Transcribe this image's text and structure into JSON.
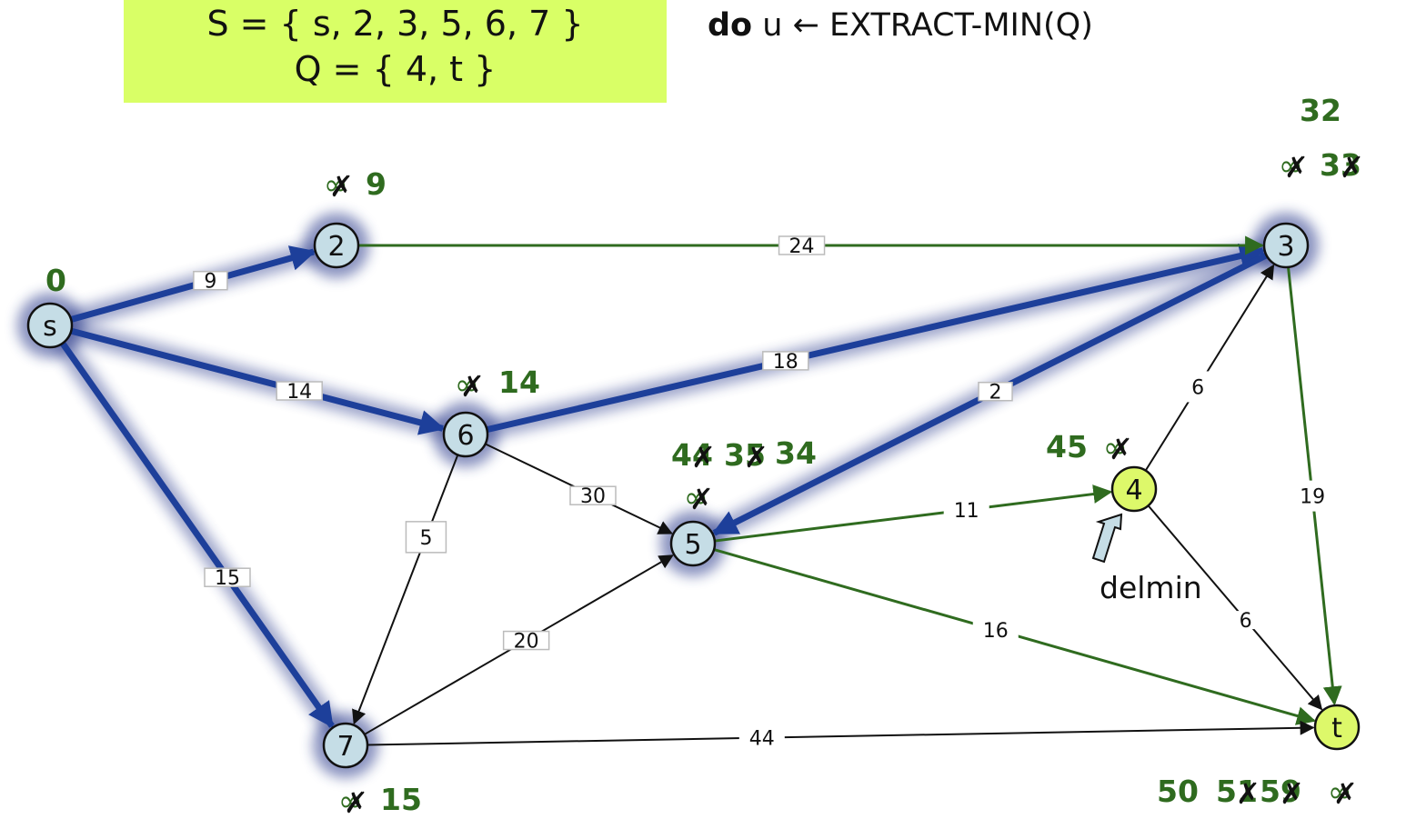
{
  "header": {
    "set_s": "S = { s, 2, 3, 5, 6, 7 }",
    "set_q": "Q = { 4, t }",
    "pseudo_keyword": "do",
    "pseudo_rest": " u ← EXTRACT-MIN(Q)"
  },
  "colors": {
    "set_box": "#d9ff66",
    "tree_edge": "#1d3f9a",
    "frontier_edge": "#2f6b1f",
    "plain_edge": "#111111",
    "settled_node": "#c5dde6",
    "queued_node": "#ddf86a",
    "dist_text": "#2f6b1f"
  },
  "nodes": [
    {
      "id": "s",
      "label": "s",
      "state": "settled"
    },
    {
      "id": "2",
      "label": "2",
      "state": "settled"
    },
    {
      "id": "3",
      "label": "3",
      "state": "settled"
    },
    {
      "id": "6",
      "label": "6",
      "state": "settled"
    },
    {
      "id": "5",
      "label": "5",
      "state": "settled"
    },
    {
      "id": "7",
      "label": "7",
      "state": "settled"
    },
    {
      "id": "4",
      "label": "4",
      "state": "queued"
    },
    {
      "id": "t",
      "label": "t",
      "state": "queued"
    }
  ],
  "edges": [
    {
      "from": "s",
      "to": "2",
      "weight": "9",
      "kind": "tree"
    },
    {
      "from": "s",
      "to": "6",
      "weight": "14",
      "kind": "tree"
    },
    {
      "from": "s",
      "to": "7",
      "weight": "15",
      "kind": "tree"
    },
    {
      "from": "6",
      "to": "3",
      "weight": "18",
      "kind": "tree"
    },
    {
      "from": "3",
      "to": "5",
      "weight": "2",
      "kind": "tree"
    },
    {
      "from": "2",
      "to": "3",
      "weight": "24",
      "kind": "frontier"
    },
    {
      "from": "3",
      "to": "t",
      "weight": "19",
      "kind": "frontier"
    },
    {
      "from": "5",
      "to": "4",
      "weight": "11",
      "kind": "frontier"
    },
    {
      "from": "5",
      "to": "t",
      "weight": "16",
      "kind": "frontier"
    },
    {
      "from": "6",
      "to": "5",
      "weight": "30",
      "kind": "plain"
    },
    {
      "from": "6",
      "to": "7",
      "weight": "5",
      "kind": "plain"
    },
    {
      "from": "7",
      "to": "5",
      "weight": "20",
      "kind": "plain"
    },
    {
      "from": "7",
      "to": "t",
      "weight": "44",
      "kind": "plain"
    },
    {
      "from": "4",
      "to": "3",
      "weight": "6",
      "kind": "plain"
    },
    {
      "from": "4",
      "to": "t",
      "weight": "6",
      "kind": "plain"
    }
  ],
  "distances": {
    "s": {
      "current": "0"
    },
    "2": {
      "struck": [
        "∞"
      ],
      "current": "9"
    },
    "3": {
      "struck": [
        "∞",
        "33"
      ],
      "current": "32"
    },
    "6": {
      "struck": [
        "∞"
      ],
      "current": "14"
    },
    "5": {
      "struck": [
        "∞",
        "44",
        "35"
      ],
      "current": "34"
    },
    "7": {
      "struck": [
        "∞"
      ],
      "current": "15"
    },
    "4": {
      "struck": [
        "∞"
      ],
      "current": "45"
    },
    "t": {
      "struck": [
        "∞",
        "59",
        "51"
      ],
      "current": "50"
    }
  },
  "annotation": {
    "delmin_label": "delmin",
    "target": "4"
  }
}
